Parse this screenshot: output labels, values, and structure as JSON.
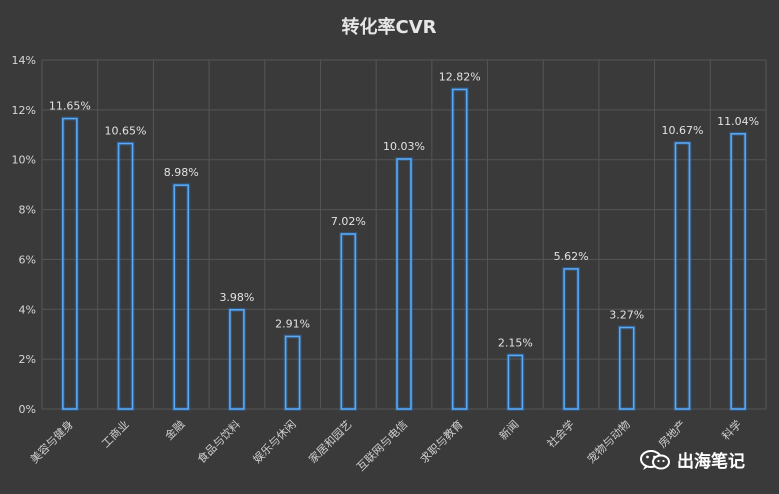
{
  "chart_data": {
    "type": "bar",
    "title": "转化率CVR",
    "categories": [
      "美容与健身",
      "工商业",
      "金融",
      "食品与饮料",
      "娱乐与休闲",
      "家居和园艺",
      "互联网与电信",
      "求职与教育",
      "新闻",
      "社会学",
      "宠物与动物",
      "房地产",
      "科学"
    ],
    "values": [
      11.65,
      10.65,
      8.98,
      3.98,
      2.91,
      7.02,
      10.03,
      12.82,
      2.15,
      5.62,
      3.27,
      10.67,
      11.04
    ],
    "data_labels": [
      "11.65%",
      "10.65%",
      "8.98%",
      "3.98%",
      "2.91%",
      "7.02%",
      "10.03%",
      "12.82%",
      "2.15%",
      "5.62%",
      "3.27%",
      "10.67%",
      "11.04%"
    ],
    "y_ticks": [
      0,
      2,
      4,
      6,
      8,
      10,
      12,
      14
    ],
    "y_tick_labels": [
      "0%",
      "2%",
      "4%",
      "6%",
      "8%",
      "10%",
      "12%",
      "14%"
    ],
    "ylim": [
      0,
      14
    ],
    "grid": true,
    "colors": {
      "bar_stroke": "#5aa9f4",
      "background": "#3a3a3a",
      "grid": "#555555"
    }
  },
  "watermark": {
    "text": "出海笔记",
    "icon": "wechat-icon"
  }
}
